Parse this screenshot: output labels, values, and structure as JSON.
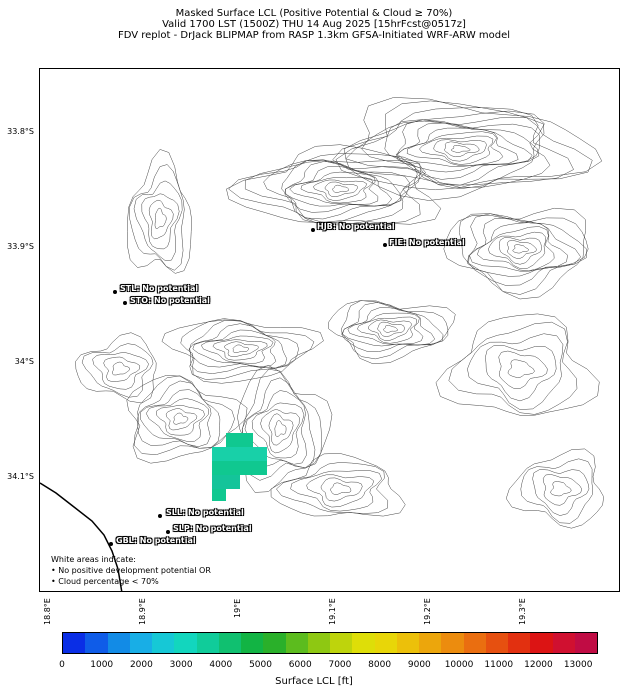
{
  "header": {
    "line1": "Masked Surface LCL (Positive Potential & Cloud ≥ 70%)",
    "line2": "Valid 1700 LST (1500Z) THU 14 Aug 2025 [15hrFcst@0517z]",
    "line3": "FDV replot - DrJack BLIPMAP from RASP 1.3km GFSA-Initiated WRF-ARW model"
  },
  "axes": {
    "lat_ticks": [
      "33.8°S",
      "33.9°S",
      "34°S",
      "34.1°S"
    ],
    "lon_ticks": [
      "18.8°E",
      "18.9°E",
      "19°E",
      "19.1°E",
      "19.2°E",
      "19.3°E"
    ]
  },
  "stations": [
    {
      "label": "HJB: No potential"
    },
    {
      "label": "FIE: No potential"
    },
    {
      "label": "STL: No potential"
    },
    {
      "label": "STO: No potential"
    },
    {
      "label": "SLL: No potential"
    },
    {
      "label": "SLP: No potential"
    },
    {
      "label": "GBL: No potential"
    }
  ],
  "note": {
    "line1": "White areas indicate:",
    "line2": "• No positive development potential OR",
    "line3": "• Cloud percentage < 70%"
  },
  "colorbar": {
    "label": "Surface LCL [ft]",
    "ticks": [
      "0",
      "1000",
      "2000",
      "3000",
      "4000",
      "5000",
      "6000",
      "7000",
      "8000",
      "9000",
      "10000",
      "11000",
      "12000",
      "13000"
    ],
    "colors": [
      "#0a2ee6",
      "#0f5ce8",
      "#128be6",
      "#18aee6",
      "#16c8d6",
      "#12d6be",
      "#10cc9a",
      "#10c070",
      "#12b444",
      "#2ab02a",
      "#5cbc1e",
      "#8ec812",
      "#bed40c",
      "#dede08",
      "#e8d608",
      "#ecc00a",
      "#eca60c",
      "#ec8c0e",
      "#ea6e10",
      "#e65010",
      "#e23010",
      "#dc1414",
      "#d01030",
      "#c00c44"
    ]
  },
  "map": {
    "highlight_color": "#10c890",
    "coast_color": "#000000",
    "contour_color": "#444444"
  }
}
